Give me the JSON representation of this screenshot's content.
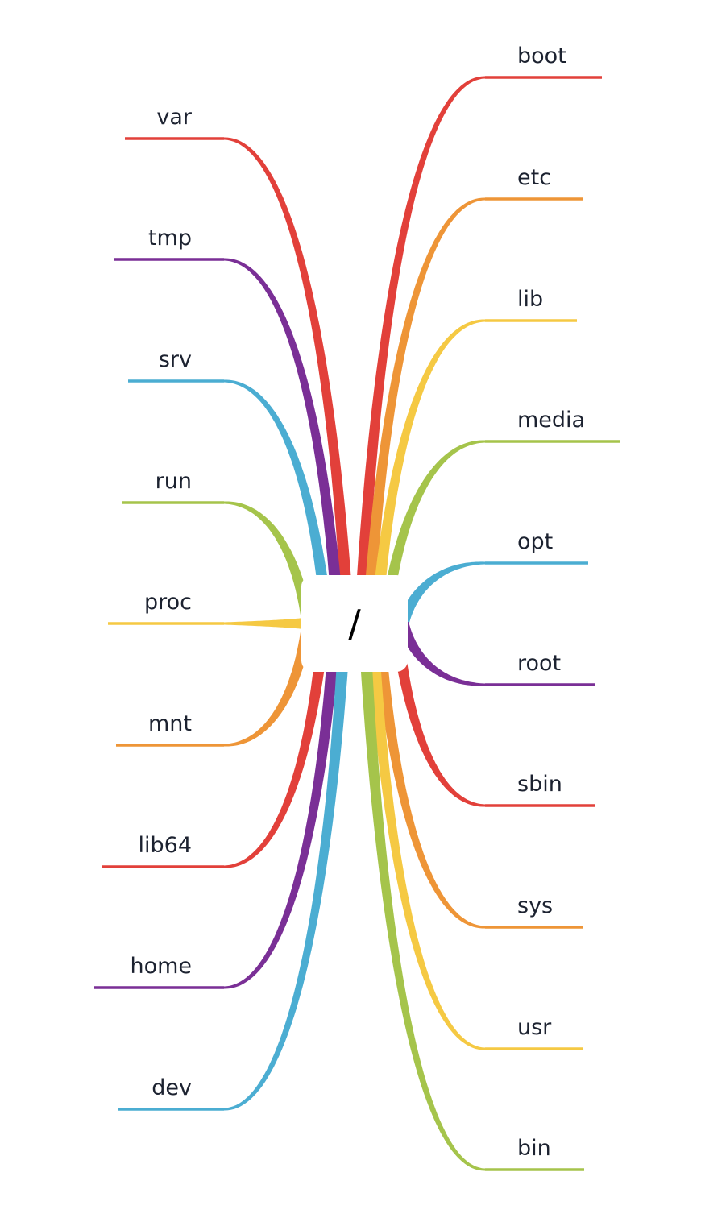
{
  "root": {
    "label": "/"
  },
  "colors": {
    "red": "#e2403a",
    "orange": "#ee9537",
    "yellow": "#f5c943",
    "green": "#a5c44b",
    "blue": "#4badd2",
    "purple": "#7a2f96"
  },
  "right": [
    {
      "label": "boot",
      "color": "red"
    },
    {
      "label": "etc",
      "color": "orange"
    },
    {
      "label": "lib",
      "color": "yellow"
    },
    {
      "label": "media",
      "color": "green"
    },
    {
      "label": "opt",
      "color": "blue"
    },
    {
      "label": "root",
      "color": "purple"
    },
    {
      "label": "sbin",
      "color": "red"
    },
    {
      "label": "sys",
      "color": "orange"
    },
    {
      "label": "usr",
      "color": "yellow"
    },
    {
      "label": "bin",
      "color": "green"
    }
  ],
  "left": [
    {
      "label": "var",
      "color": "red"
    },
    {
      "label": "tmp",
      "color": "purple"
    },
    {
      "label": "srv",
      "color": "blue"
    },
    {
      "label": "run",
      "color": "green"
    },
    {
      "label": "proc",
      "color": "yellow"
    },
    {
      "label": "mnt",
      "color": "orange"
    },
    {
      "label": "lib64",
      "color": "red"
    },
    {
      "label": "home",
      "color": "purple"
    },
    {
      "label": "dev",
      "color": "blue"
    }
  ]
}
